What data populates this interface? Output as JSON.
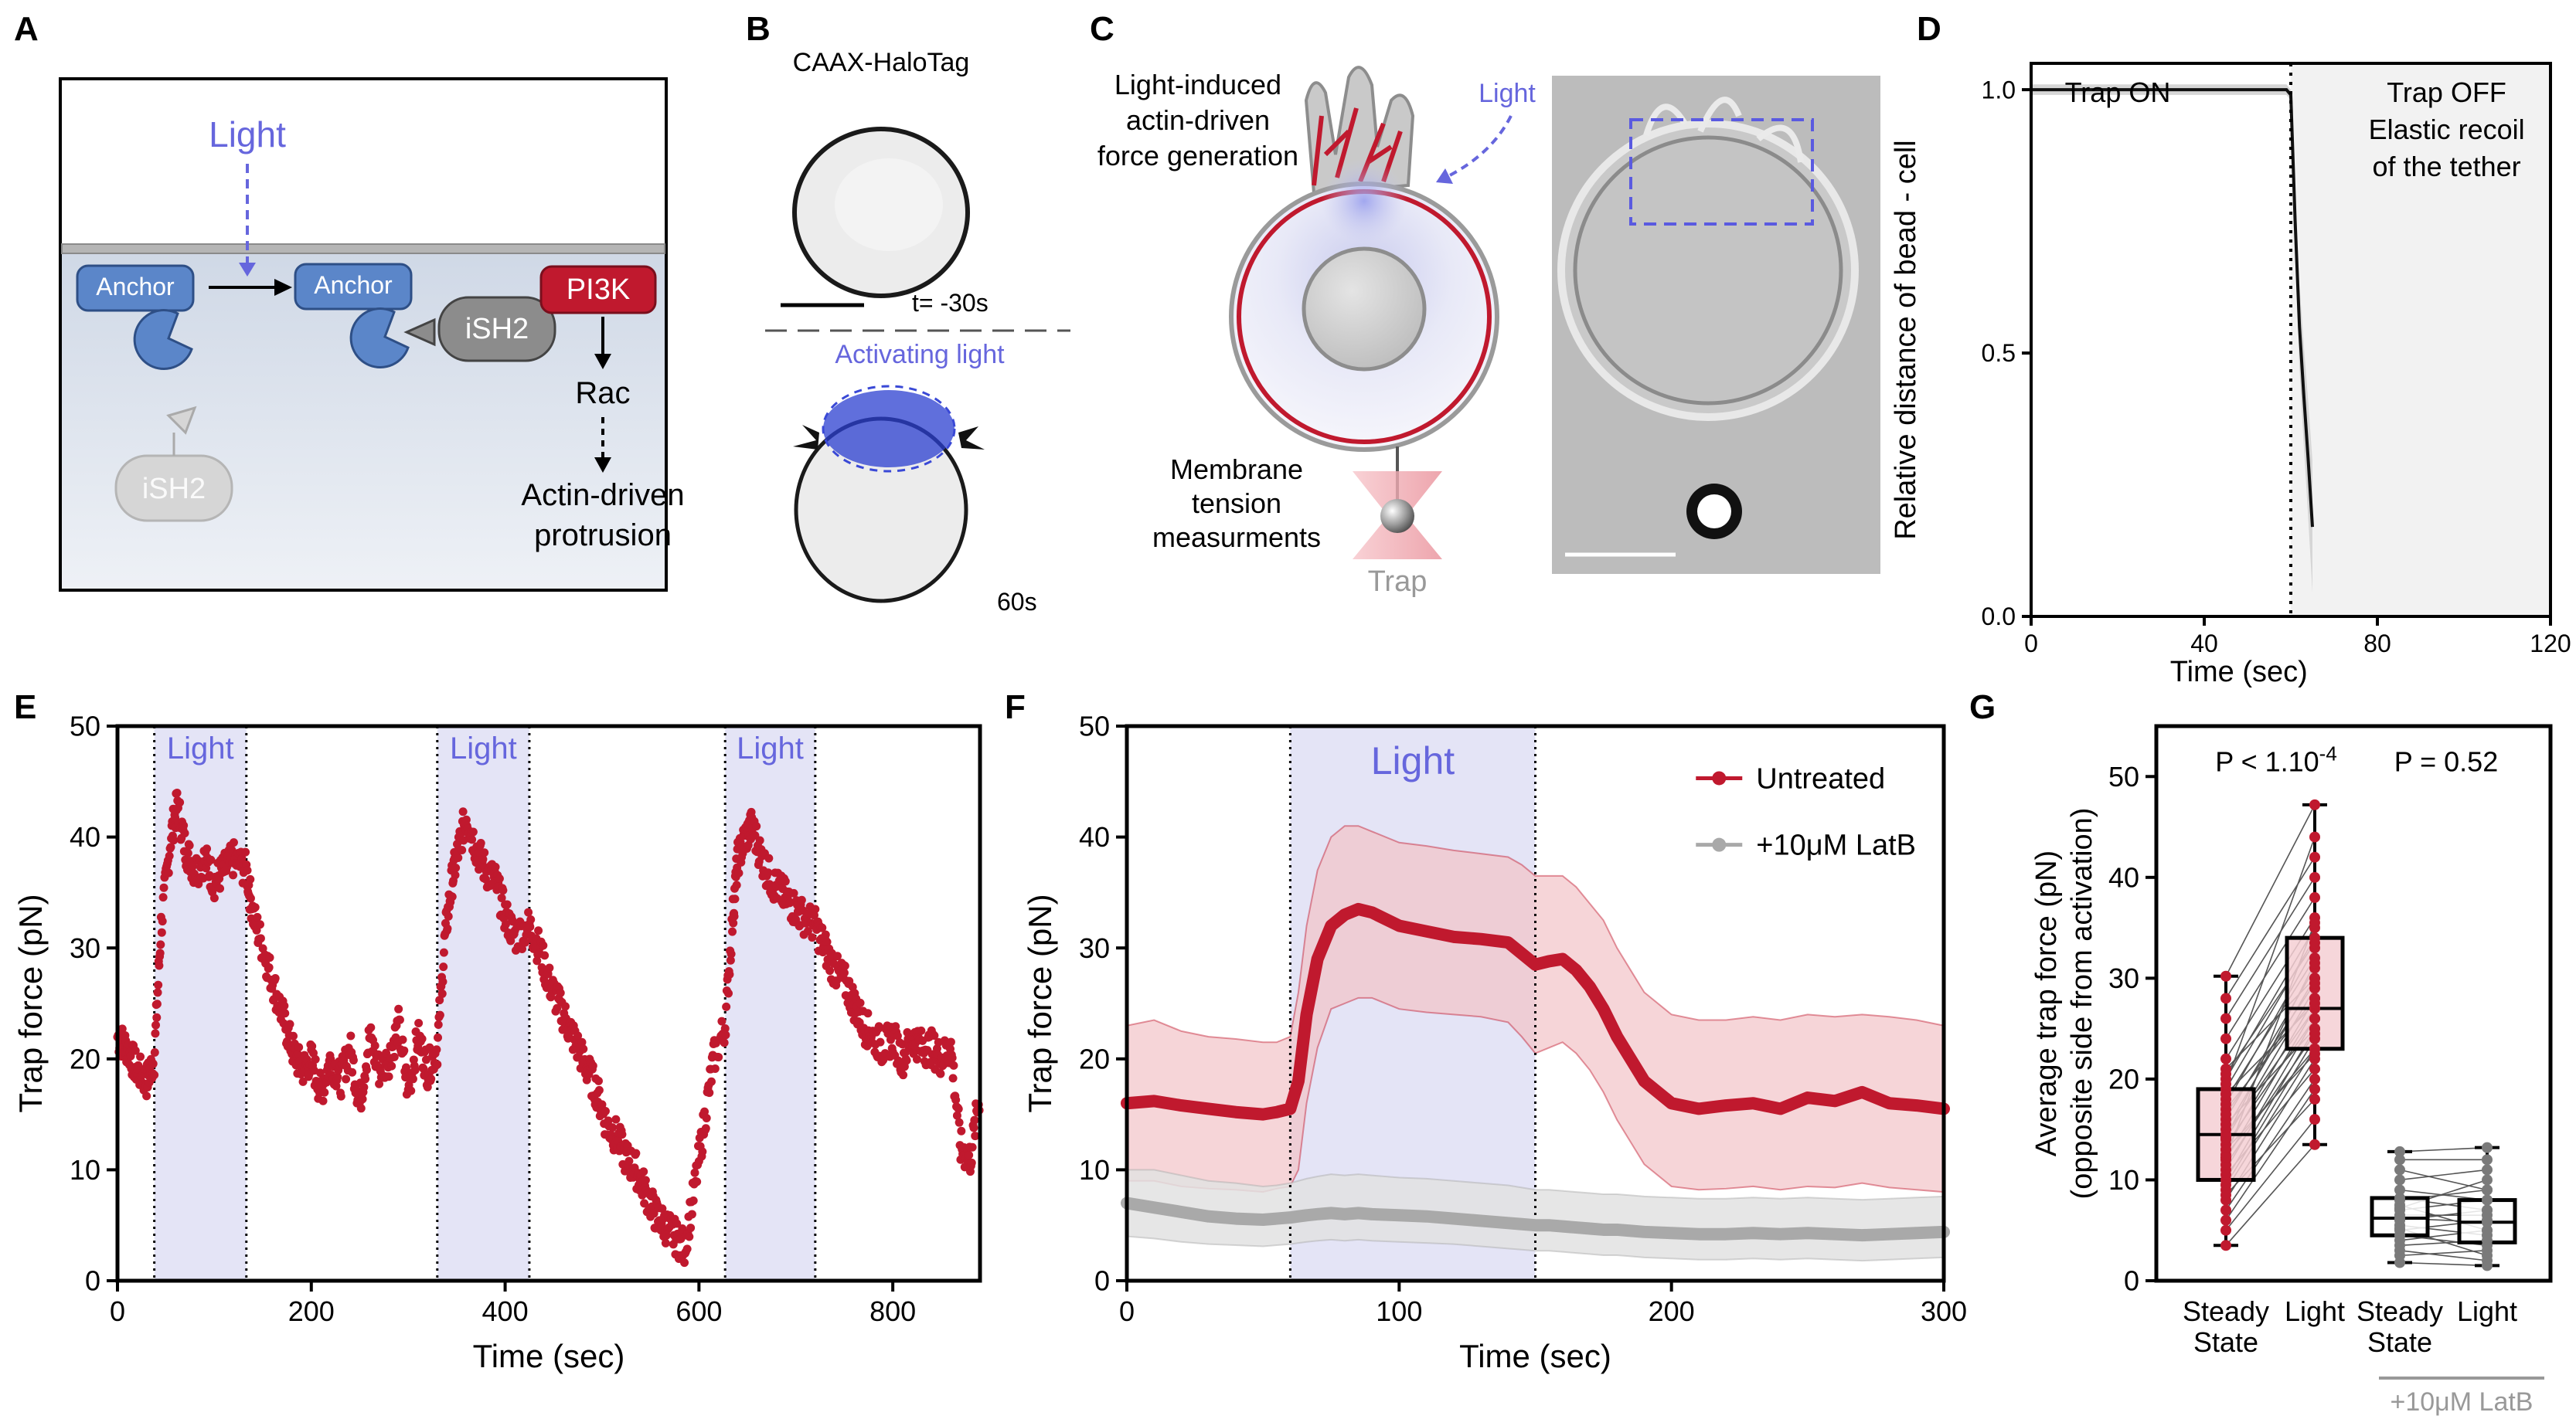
{
  "panels": [
    "A",
    "B",
    "C",
    "D",
    "E",
    "F",
    "G"
  ],
  "panelA": {
    "light": "Light",
    "anchor1": "Anchor",
    "anchor2": "Anchor",
    "ish2_bound": "iSH2",
    "ish2_free": "iSH2",
    "pi3k": "PI3K",
    "rac": "Rac",
    "outcome_line1": "Actin-driven",
    "outcome_line2": "protrusion"
  },
  "panelB": {
    "title": "CAAX-HaloTag",
    "time_before": "t= -30s",
    "activating": "Activating light",
    "time_after": "60s"
  },
  "panelC": {
    "force_line1": "Light-induced",
    "force_line2": "actin-driven",
    "force_line3": "force generation",
    "light": "Light",
    "tension_line1": "Membrane",
    "tension_line2": "tension",
    "tension_line3": "measurments",
    "trap": "Trap"
  },
  "colors": {
    "red": "#c0192e",
    "red_fill": "#f2c3c8",
    "grey": "#a9a9a9",
    "grey_fill": "#e2e2e2",
    "light_fill": "#e4e4f6",
    "light_text": "#6666dd",
    "anchor_blue": "#5b86c9",
    "ish2_grey": "#8c8c8c"
  },
  "chart_data": [
    {
      "panel": "D",
      "type": "line",
      "title": "",
      "xlabel": "Time (sec)",
      "ylabel": "Relative distance of  bead - cell",
      "xlim": [
        0,
        120
      ],
      "ylim": [
        0,
        1.05
      ],
      "xticks": [
        "0",
        "40",
        "80",
        "120"
      ],
      "yticks": [
        "0.0",
        "0.5",
        "1.0"
      ],
      "grid": false,
      "annotations": [
        "Trap ON",
        "Trap OFF",
        "Elastic recoil",
        "of the tether"
      ],
      "trap_off_time": 60,
      "series": [
        {
          "x": [
            0,
            10,
            20,
            30,
            40,
            50,
            55,
            59,
            60,
            61,
            62,
            63,
            64,
            65
          ],
          "y": [
            1.0,
            1.0,
            1.0,
            1.0,
            1.0,
            1.0,
            1.0,
            1.0,
            0.99,
            0.75,
            0.55,
            0.42,
            0.3,
            0.17
          ]
        }
      ]
    },
    {
      "panel": "E",
      "type": "scatter",
      "title": "",
      "xlabel": "Time (sec)",
      "ylabel": "Trap force (pN)",
      "xlim": [
        0,
        890
      ],
      "ylim": [
        0,
        50
      ],
      "xticks": [
        "0",
        "200",
        "400",
        "600",
        "800"
      ],
      "yticks": [
        "0",
        "10",
        "20",
        "30",
        "40",
        "50"
      ],
      "grid": false,
      "light_label": "Light",
      "light_windows": [
        [
          38,
          133
        ],
        [
          330,
          425
        ],
        [
          627,
          720
        ]
      ],
      "series": [
        {
          "x": [
            0,
            10,
            20,
            30,
            38,
            45,
            55,
            62,
            70,
            80,
            90,
            100,
            110,
            120,
            133,
            140,
            150,
            160,
            170,
            180,
            190,
            200,
            210,
            220,
            230,
            240,
            250,
            260,
            270,
            280,
            290,
            300,
            310,
            320,
            330,
            338,
            345,
            352,
            360,
            370,
            380,
            390,
            400,
            410,
            425,
            435,
            445,
            455,
            465,
            475,
            485,
            495,
            505,
            515,
            525,
            535,
            545,
            555,
            565,
            575,
            585,
            595,
            605,
            615,
            627,
            635,
            640,
            648,
            655,
            665,
            675,
            685,
            695,
            705,
            720,
            730,
            740,
            750,
            760,
            770,
            780,
            790,
            800,
            810,
            820,
            830,
            840,
            850,
            860,
            870,
            880,
            890
          ],
          "y": [
            22,
            21,
            19,
            18,
            20,
            32,
            40,
            43,
            39,
            37,
            38,
            36,
            37,
            38,
            37,
            33,
            30,
            27,
            24,
            21,
            19,
            20,
            17,
            20,
            18,
            21,
            16,
            22,
            19,
            20,
            23,
            17,
            22,
            19,
            21,
            31,
            36,
            39,
            42,
            39,
            37,
            36,
            33,
            31,
            32,
            30,
            27,
            25,
            23,
            21,
            19,
            17,
            14,
            13,
            11,
            10,
            8,
            6,
            5,
            4,
            3,
            8,
            14,
            20,
            23,
            33,
            38,
            40,
            41,
            38,
            36,
            35,
            34,
            33,
            32,
            30,
            28,
            27,
            25,
            23,
            22,
            21,
            22,
            20,
            22,
            21,
            21,
            20,
            21,
            12,
            11,
            17
          ]
        }
      ]
    },
    {
      "panel": "F",
      "type": "line",
      "title": "",
      "xlabel": "Time (sec)",
      "ylabel": "Trap force (pN)",
      "xlim": [
        0,
        300
      ],
      "ylim": [
        0,
        50
      ],
      "xticks": [
        "0",
        "100",
        "200",
        "300"
      ],
      "yticks": [
        "0",
        "10",
        "20",
        "30",
        "40",
        "50"
      ],
      "grid": false,
      "legend_position": "top-right",
      "light_label": "Light",
      "light_window": [
        60,
        150
      ],
      "x": [
        0,
        10,
        20,
        30,
        40,
        50,
        55,
        60,
        63,
        66,
        70,
        75,
        80,
        85,
        90,
        100,
        110,
        120,
        130,
        140,
        145,
        150,
        155,
        160,
        165,
        170,
        175,
        180,
        185,
        190,
        200,
        210,
        220,
        230,
        240,
        250,
        260,
        270,
        280,
        290,
        300
      ],
      "series": [
        {
          "name": "Untreated",
          "values": [
            16,
            16.2,
            15.8,
            15.5,
            15.2,
            15,
            15.2,
            15.5,
            18,
            24,
            29,
            32,
            33,
            33.5,
            33.2,
            32,
            31.5,
            31,
            30.8,
            30.5,
            29.5,
            28.5,
            28.8,
            29,
            28,
            26.5,
            24.5,
            22,
            20,
            18,
            16,
            15.5,
            15.8,
            16,
            15.5,
            16.5,
            16.2,
            17,
            16,
            15.8,
            15.5
          ],
          "upper": [
            23,
            23.5,
            22.5,
            22,
            21.8,
            21.5,
            21.5,
            22,
            26,
            32,
            37,
            40,
            41,
            41,
            40.5,
            39.5,
            39.2,
            38.8,
            38.5,
            38.2,
            37.5,
            36.5,
            36.5,
            36.5,
            35.5,
            34,
            32.5,
            30,
            28,
            26,
            24,
            23.5,
            23.5,
            23.8,
            23.5,
            24,
            23.8,
            24,
            23.8,
            23.5,
            23
          ],
          "lower": [
            9,
            9,
            8.5,
            8.3,
            8.2,
            8,
            8.3,
            8.5,
            10,
            16,
            21,
            24.5,
            25,
            25.5,
            25.5,
            24.5,
            24.2,
            24,
            23.8,
            23.3,
            22,
            20.5,
            21,
            21.5,
            20.5,
            19,
            17,
            14.5,
            12.5,
            10.5,
            8.5,
            8.2,
            8.3,
            8.5,
            8.2,
            8.5,
            8.4,
            8.8,
            8.4,
            8.2,
            8
          ]
        },
        {
          "name": "+10μM LatB",
          "values": [
            7,
            6.6,
            6.2,
            5.8,
            5.6,
            5.5,
            5.6,
            5.7,
            5.8,
            5.9,
            6.0,
            6.1,
            6.0,
            6.1,
            6.0,
            5.9,
            5.8,
            5.6,
            5.4,
            5.2,
            5.1,
            5.0,
            5.0,
            4.9,
            4.8,
            4.7,
            4.6,
            4.6,
            4.5,
            4.4,
            4.3,
            4.2,
            4.2,
            4.3,
            4.2,
            4.3,
            4.2,
            4.1,
            4.2,
            4.3,
            4.4
          ],
          "upper": [
            10,
            10,
            9.5,
            9,
            8.8,
            8.5,
            8.6,
            8.8,
            9,
            9.2,
            9.4,
            9.6,
            9.5,
            9.6,
            9.5,
            9.3,
            9.2,
            9.0,
            8.8,
            8.6,
            8.4,
            8.2,
            8.2,
            8.1,
            8,
            7.9,
            7.8,
            7.8,
            7.7,
            7.6,
            7.5,
            7.4,
            7.4,
            7.5,
            7.4,
            7.5,
            7.4,
            7.3,
            7.4,
            7.5,
            7.6
          ],
          "lower": [
            4,
            3.8,
            3.5,
            3.3,
            3.2,
            3.1,
            3.2,
            3.3,
            3.4,
            3.5,
            3.6,
            3.7,
            3.6,
            3.7,
            3.6,
            3.5,
            3.4,
            3.3,
            3.1,
            2.9,
            2.8,
            2.7,
            2.7,
            2.6,
            2.5,
            2.4,
            2.3,
            2.3,
            2.2,
            2.1,
            2.0,
            1.9,
            1.9,
            2.0,
            1.9,
            2.0,
            1.9,
            1.8,
            1.9,
            2.0,
            2.1
          ]
        }
      ]
    },
    {
      "panel": "G",
      "type": "box",
      "title": "",
      "xlabel": "",
      "ylabel_line1": "Average trap force (pN)",
      "ylabel_line2": "(opposite side from activation)",
      "ylim": [
        0,
        55
      ],
      "yticks": [
        "0",
        "10",
        "20",
        "30",
        "40",
        "50"
      ],
      "grid": false,
      "categories": [
        "Steady State",
        "Light",
        "Steady State",
        "Light"
      ],
      "group_label": "+10μM LatB",
      "pvalues": [
        "P < 1.10",
        "-4",
        "P = 0.52"
      ],
      "boxes": [
        {
          "category": "Steady State",
          "min": 3.5,
          "q1": 10,
          "median": 14.5,
          "q3": 19,
          "max": 30.2,
          "color": "red"
        },
        {
          "category": "Light",
          "min": 13.5,
          "q1": 23,
          "median": 27,
          "q3": 34,
          "max": 47.2,
          "color": "red"
        },
        {
          "category": "Steady State",
          "min": 1.8,
          "q1": 4.5,
          "median": 6.2,
          "q3": 8.2,
          "max": 12.8,
          "color": "grey"
        },
        {
          "category": "Light",
          "min": 1.5,
          "q1": 3.8,
          "median": 5.8,
          "q3": 8.0,
          "max": 13.2,
          "color": "grey"
        }
      ],
      "paired_untreated": [
        [
          3.5,
          13.5
        ],
        [
          5,
          16
        ],
        [
          6,
          19
        ],
        [
          7,
          20
        ],
        [
          8,
          22
        ],
        [
          9,
          23
        ],
        [
          9.5,
          24
        ],
        [
          10,
          25
        ],
        [
          10.5,
          21
        ],
        [
          11,
          26
        ],
        [
          12,
          27
        ],
        [
          12.5,
          23
        ],
        [
          13,
          28
        ],
        [
          13.5,
          26
        ],
        [
          14,
          29
        ],
        [
          14.5,
          27
        ],
        [
          15,
          30
        ],
        [
          15.5,
          25
        ],
        [
          16,
          31
        ],
        [
          17,
          28
        ],
        [
          17.5,
          33
        ],
        [
          18,
          32
        ],
        [
          19,
          34
        ],
        [
          20,
          35
        ],
        [
          21,
          30
        ],
        [
          22,
          36
        ],
        [
          24,
          38
        ],
        [
          26,
          40
        ],
        [
          28,
          42
        ],
        [
          30.2,
          47.2
        ],
        [
          11.5,
          24.5
        ],
        [
          13,
          22.5
        ],
        [
          16.5,
          29.5
        ],
        [
          18.5,
          27.5
        ],
        [
          20.5,
          33.5
        ],
        [
          8.5,
          18
        ],
        [
          14.2,
          31.5
        ],
        [
          12.2,
          35.5
        ],
        [
          19.5,
          44
        ]
      ],
      "paired_latb": [
        [
          1.8,
          1.5
        ],
        [
          2.5,
          3
        ],
        [
          3,
          2
        ],
        [
          3.5,
          4
        ],
        [
          4,
          5
        ],
        [
          4.5,
          3.5
        ],
        [
          5,
          6
        ],
        [
          5.5,
          4.5
        ],
        [
          6,
          7
        ],
        [
          6.2,
          5.8
        ],
        [
          6.5,
          6.5
        ],
        [
          7,
          8
        ],
        [
          7.5,
          5
        ],
        [
          8,
          9
        ],
        [
          8.2,
          7
        ],
        [
          9,
          8
        ],
        [
          10,
          11
        ],
        [
          11,
          9
        ],
        [
          12,
          12
        ],
        [
          12.8,
          13.2
        ],
        [
          5.2,
          2.5
        ],
        [
          7.2,
          10
        ]
      ]
    }
  ]
}
